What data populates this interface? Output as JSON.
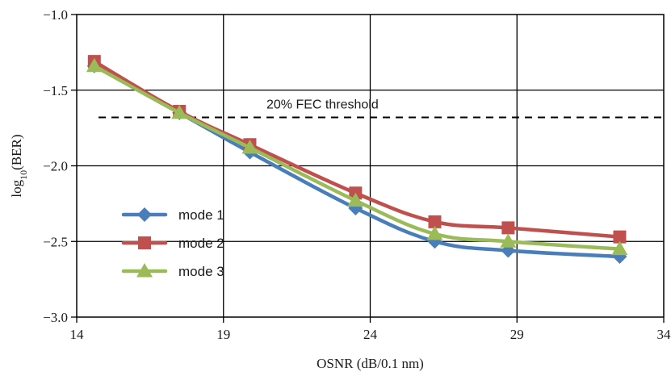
{
  "chart_data": {
    "type": "line",
    "xlabel": "OSNR (dB/0.1 nm)",
    "ylabel": {
      "prefix": "log",
      "sub": "10",
      "suffix": "(BER)"
    },
    "xlim": [
      14,
      34
    ],
    "ylim": [
      -3.0,
      -1.0
    ],
    "xticks": [
      14,
      19,
      24,
      29,
      34
    ],
    "xtick_labels": [
      "14",
      "19",
      "24",
      "29",
      "34"
    ],
    "yticks": [
      -1.0,
      -1.5,
      -2.0,
      -2.5,
      -3.0
    ],
    "ytick_labels": [
      "−1.0",
      "−1.5",
      "−2.0",
      "−2.5",
      "−3.0"
    ],
    "grid": true,
    "legend_position": "left",
    "threshold": {
      "label": "20% FEC threshold",
      "y": -1.68
    },
    "series": [
      {
        "name": "mode 1",
        "color": "#4a7ebb",
        "marker": "diamond",
        "x": [
          14.6,
          17.5,
          19.9,
          23.5,
          26.2,
          28.7,
          32.5
        ],
        "y": [
          -1.34,
          -1.65,
          -1.91,
          -2.28,
          -2.5,
          -2.56,
          -2.6
        ]
      },
      {
        "name": "mode 2",
        "color": "#c0504d",
        "marker": "square",
        "x": [
          14.6,
          17.5,
          19.9,
          23.5,
          26.2,
          28.7,
          32.5
        ],
        "y": [
          -1.31,
          -1.64,
          -1.86,
          -2.18,
          -2.37,
          -2.41,
          -2.47
        ]
      },
      {
        "name": "mode 3",
        "color": "#9bbb59",
        "marker": "triangle",
        "x": [
          14.6,
          17.5,
          19.9,
          23.5,
          26.2,
          28.7,
          32.5
        ],
        "y": [
          -1.34,
          -1.65,
          -1.88,
          -2.23,
          -2.45,
          -2.5,
          -2.55
        ]
      }
    ]
  }
}
